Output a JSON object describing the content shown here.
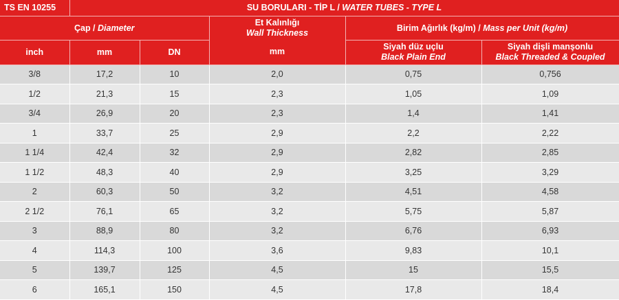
{
  "header": {
    "standard": "TS EN 10255",
    "title_tr": "SU BORULARI - TİP L / ",
    "title_en": "WATER TUBES - TYPE L",
    "diameter_tr": "Çap / ",
    "diameter_en": "Diameter",
    "thickness_tr": "Et Kalınlığı",
    "thickness_en": "Wall Thickness",
    "mass_tr": "Birim Ağırlık (kg/m) / ",
    "mass_en": "Mass per Unit (kg/m)",
    "col_inch": "inch",
    "col_mm": "mm",
    "col_dn": "DN",
    "col_thickness_mm": "mm",
    "plain_tr": "Siyah düz uçlu",
    "plain_en": "Black Plain End",
    "threaded_tr": "Siyah dişli manşonlu",
    "threaded_en": "Black Threaded & Coupled"
  },
  "rows": [
    {
      "inch": "3/8",
      "mm": "17,2",
      "dn": "10",
      "thickness": "2,0",
      "plain": "0,75",
      "threaded": "0,756"
    },
    {
      "inch": "1/2",
      "mm": "21,3",
      "dn": "15",
      "thickness": "2,3",
      "plain": "1,05",
      "threaded": "1,09"
    },
    {
      "inch": "3/4",
      "mm": "26,9",
      "dn": "20",
      "thickness": "2,3",
      "plain": "1,4",
      "threaded": "1,41"
    },
    {
      "inch": "1",
      "mm": "33,7",
      "dn": "25",
      "thickness": "2,9",
      "plain": "2,2",
      "threaded": "2,22"
    },
    {
      "inch": "1 1/4",
      "mm": "42,4",
      "dn": "32",
      "thickness": "2,9",
      "plain": "2,82",
      "threaded": "2,85"
    },
    {
      "inch": "1 1/2",
      "mm": "48,3",
      "dn": "40",
      "thickness": "2,9",
      "plain": "3,25",
      "threaded": "3,29"
    },
    {
      "inch": "2",
      "mm": "60,3",
      "dn": "50",
      "thickness": "3,2",
      "plain": "4,51",
      "threaded": "4,58"
    },
    {
      "inch": "2 1/2",
      "mm": "76,1",
      "dn": "65",
      "thickness": "3,2",
      "plain": "5,75",
      "threaded": "5,87"
    },
    {
      "inch": "3",
      "mm": "88,9",
      "dn": "80",
      "thickness": "3,2",
      "plain": "6,76",
      "threaded": "6,93"
    },
    {
      "inch": "4",
      "mm": "114,3",
      "dn": "100",
      "thickness": "3,6",
      "plain": "9,83",
      "threaded": "10,1"
    },
    {
      "inch": "5",
      "mm": "139,7",
      "dn": "125",
      "thickness": "4,5",
      "plain": "15",
      "threaded": "15,5"
    },
    {
      "inch": "6",
      "mm": "165,1",
      "dn": "150",
      "thickness": "4,5",
      "plain": "17,8",
      "threaded": "18,4"
    }
  ],
  "colors": {
    "header_bg": "#e02020",
    "header_text": "#ffffff",
    "row_odd": "#d9d9d9",
    "row_even": "#e9e9e9",
    "cell_text": "#333333"
  }
}
